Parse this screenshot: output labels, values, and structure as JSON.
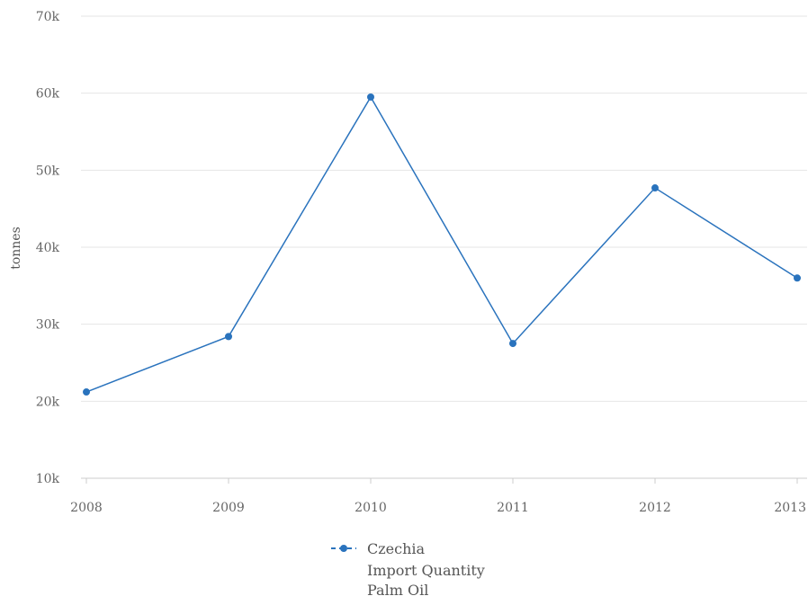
{
  "chart_data": {
    "type": "line",
    "x": [
      "2008",
      "2009",
      "2010",
      "2011",
      "2012",
      "2013"
    ],
    "series": [
      {
        "name": "Czechia\nImport Quantity\nPalm Oil",
        "values": [
          21200,
          28400,
          59500,
          27500,
          47700,
          36000
        ],
        "color": "#2a73bd"
      }
    ],
    "ylabel": "tonnes",
    "ylim": [
      10000,
      70000
    ],
    "yticks": [
      10000,
      20000,
      30000,
      40000,
      50000,
      60000,
      70000
    ],
    "ytick_labels": [
      "10k",
      "20k",
      "30k",
      "40k",
      "50k",
      "60k",
      "70k"
    ],
    "grid": true,
    "legend_position": "bottom-center",
    "legend_lines": [
      "Czechia",
      "Import Quantity",
      "Palm Oil"
    ]
  },
  "colors": {
    "grid": "#e6e6e6",
    "axis": "#cccccc",
    "series": "#2a73bd"
  }
}
